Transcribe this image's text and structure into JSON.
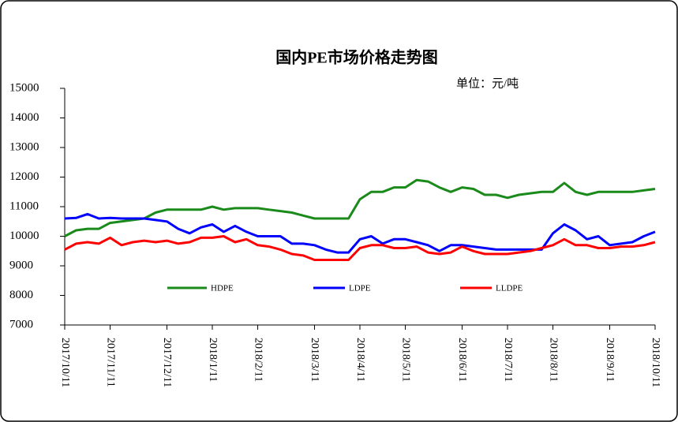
{
  "chart_data": {
    "type": "line",
    "title": "国内PE市场价格走势图",
    "subtitle": "单位：元/吨",
    "categories": [
      "2017/10/11",
      null,
      null,
      null,
      "2017/11/11",
      null,
      null,
      null,
      null,
      "2017/12/11",
      null,
      null,
      null,
      "2018/1/11",
      null,
      null,
      null,
      "2018/2/11",
      null,
      null,
      null,
      null,
      "2018/3/11",
      null,
      null,
      null,
      "2018/4/11",
      null,
      null,
      null,
      "2018/5/11",
      null,
      null,
      null,
      null,
      "2018/6/11",
      null,
      null,
      null,
      "2018/7/11",
      null,
      null,
      null,
      "2018/8/11",
      null,
      null,
      null,
      null,
      "2018/9/11",
      null,
      null,
      null,
      "2018/10/11"
    ],
    "series": [
      {
        "name": "HDPE",
        "color": "#1a8a1a",
        "values": [
          10000,
          10200,
          10250,
          10250,
          10450,
          10500,
          10550,
          10600,
          10800,
          10900,
          10900,
          10900,
          10900,
          11000,
          10900,
          10950,
          10950,
          10950,
          10900,
          10850,
          10800,
          10700,
          10600,
          10600,
          10600,
          10600,
          11250,
          11500,
          11500,
          11650,
          11650,
          11900,
          11850,
          11650,
          11500,
          11650,
          11600,
          11400,
          11400,
          11300,
          11400,
          11450,
          11500,
          11500,
          11800,
          11500,
          11400,
          11500,
          11500,
          11500,
          11500,
          11550,
          11600
        ]
      },
      {
        "name": "LDPE",
        "color": "#0000ff",
        "values": [
          10600,
          10620,
          10750,
          10600,
          10620,
          10600,
          10600,
          10600,
          10550,
          10500,
          10250,
          10100,
          10300,
          10400,
          10150,
          10350,
          10150,
          10000,
          10000,
          10000,
          9750,
          9750,
          9700,
          9550,
          9450,
          9450,
          9900,
          10000,
          9750,
          9900,
          9900,
          9800,
          9700,
          9500,
          9700,
          9700,
          9650,
          9600,
          9550,
          9550,
          9550,
          9550,
          9550,
          10100,
          10400,
          10200,
          9900,
          10000,
          9700,
          9750,
          9800,
          10000,
          10150
        ]
      },
      {
        "name": "LLDPE",
        "color": "#ff0000",
        "values": [
          9550,
          9750,
          9800,
          9750,
          9950,
          9700,
          9800,
          9850,
          9800,
          9850,
          9750,
          9800,
          9950,
          9950,
          10000,
          9800,
          9900,
          9700,
          9650,
          9550,
          9400,
          9350,
          9200,
          9200,
          9200,
          9200,
          9600,
          9700,
          9700,
          9600,
          9600,
          9650,
          9450,
          9400,
          9450,
          9650,
          9500,
          9400,
          9400,
          9400,
          9450,
          9500,
          9600,
          9700,
          9900,
          9700,
          9700,
          9600,
          9600,
          9650,
          9650,
          9700,
          9800
        ]
      }
    ],
    "ylim": [
      7000,
      15000
    ],
    "yticks": [
      7000,
      8000,
      9000,
      10000,
      11000,
      12000,
      13000,
      14000,
      15000
    ]
  }
}
